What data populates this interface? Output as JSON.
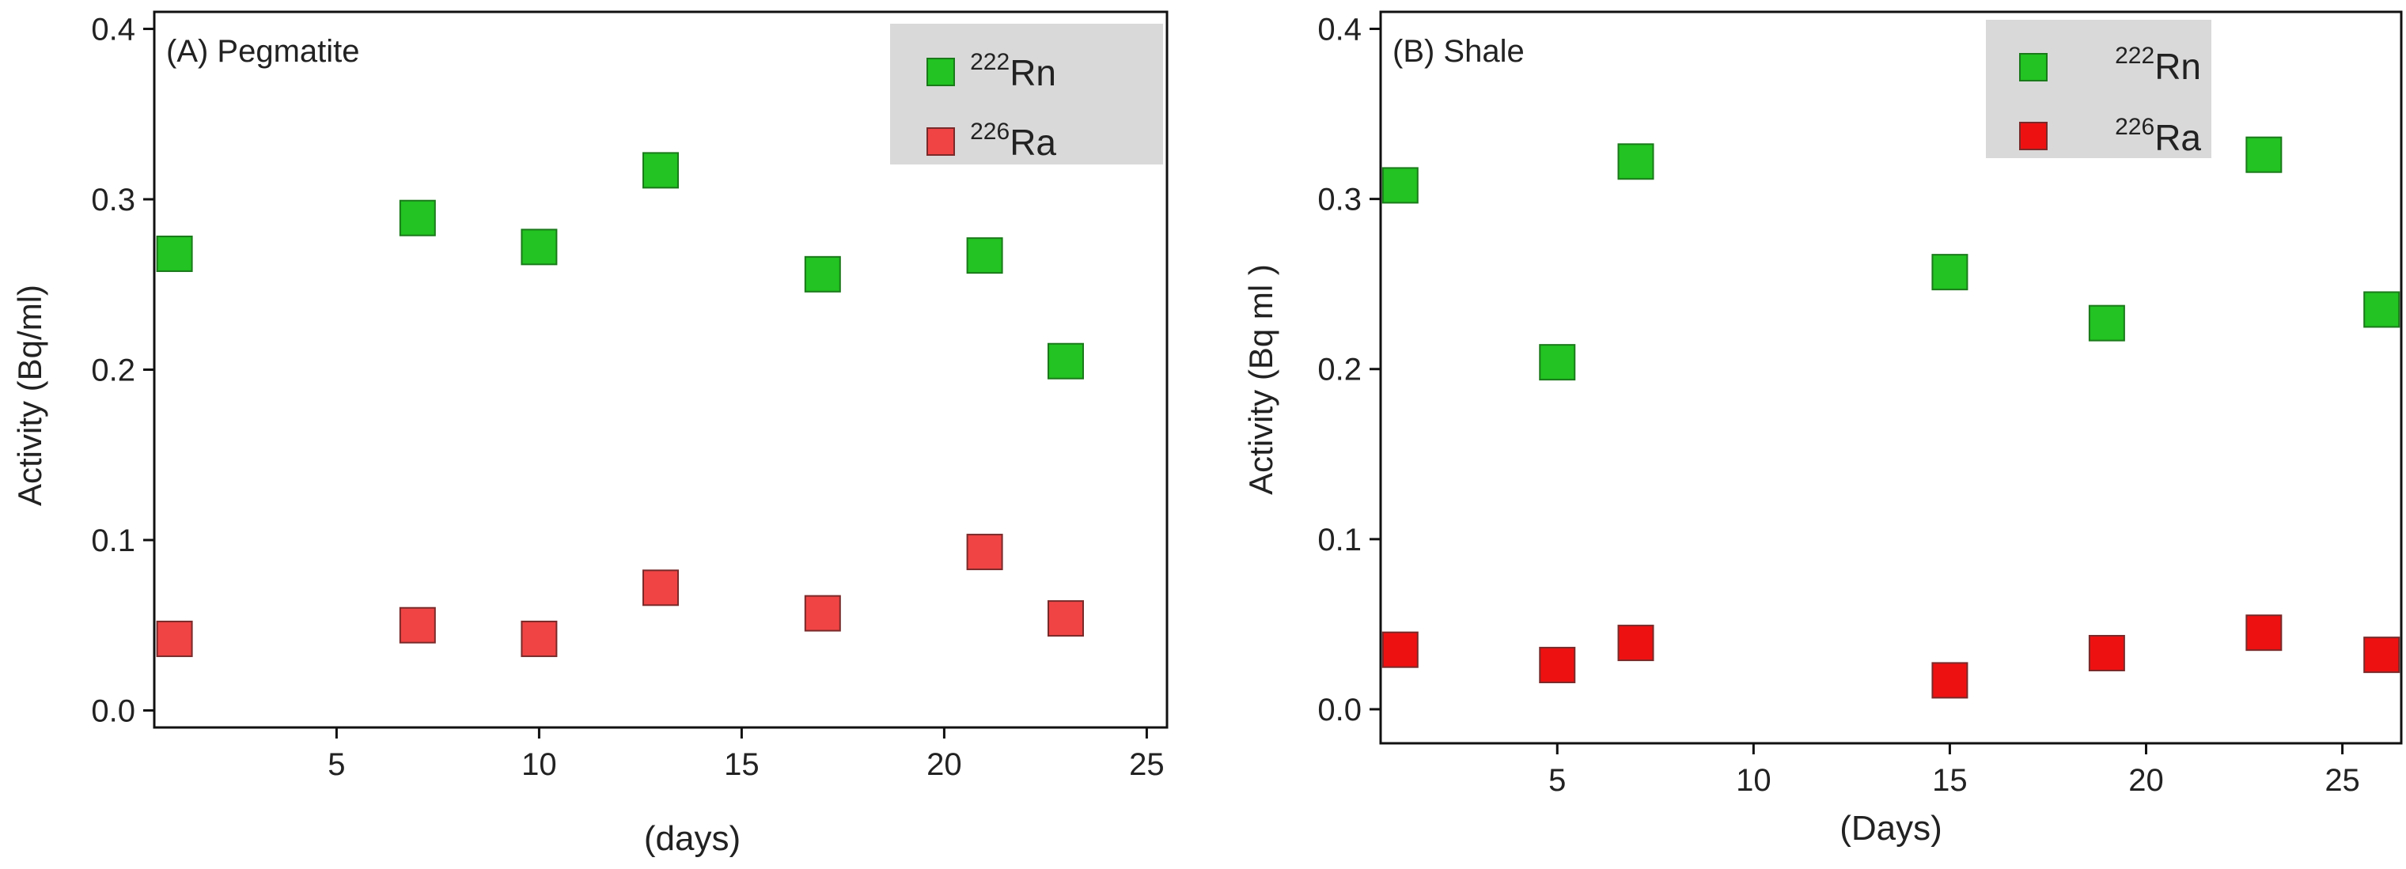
{
  "colors": {
    "rn": "#22c322",
    "rn_stroke": "#1a7a1a",
    "ra_a": "#f04444",
    "ra_b": "#ee1111",
    "ra_stroke": "#7a2a2a",
    "legend_bg": "#d9d9d9",
    "axis": "#111111"
  },
  "chart_data": [
    {
      "type": "scatter",
      "title": "(A) Pegmatite",
      "xlabel": "(days)",
      "ylabel": "Activity (Bq/ml)",
      "xlim": [
        0.5,
        25.5
      ],
      "ylim": [
        -0.01,
        0.41
      ],
      "xticks": [
        5,
        10,
        15,
        20,
        25
      ],
      "yticks": [
        0.0,
        0.1,
        0.2,
        0.3,
        0.4
      ],
      "ytick_labels": [
        "0.0",
        "0.1",
        "0.2",
        "0.3",
        "0.4"
      ],
      "legend": {
        "position": "top-right",
        "entries": [
          {
            "sup": "222",
            "label": "Rn"
          },
          {
            "sup": "226",
            "label": "Ra"
          }
        ]
      },
      "series": [
        {
          "name": "222Rn",
          "x": [
            1,
            7,
            10,
            13,
            17,
            21,
            23
          ],
          "y": [
            0.268,
            0.289,
            0.272,
            0.317,
            0.256,
            0.267,
            0.205
          ]
        },
        {
          "name": "226Ra",
          "x": [
            1,
            7,
            10,
            13,
            17,
            21,
            23
          ],
          "y": [
            0.042,
            0.05,
            0.042,
            0.072,
            0.057,
            0.093,
            0.054
          ]
        }
      ]
    },
    {
      "type": "scatter",
      "title": "(B) Shale",
      "xlabel": "(Days)",
      "ylabel": "Activity (Bq ml   )",
      "xlim": [
        0.5,
        26.5
      ],
      "ylim": [
        -0.02,
        0.41
      ],
      "xticks": [
        5,
        10,
        15,
        20,
        25
      ],
      "yticks": [
        0.0,
        0.1,
        0.2,
        0.3,
        0.4
      ],
      "ytick_labels": [
        "0.0",
        "0.1",
        "0.2",
        "0.3",
        "0.4"
      ],
      "legend": {
        "position": "top-right",
        "entries": [
          {
            "sup": "222",
            "label": "Rn"
          },
          {
            "sup": "226",
            "label": "Ra"
          }
        ]
      },
      "series": [
        {
          "name": "222Rn",
          "x": [
            1,
            5,
            7,
            15,
            19,
            23,
            26
          ],
          "y": [
            0.308,
            0.204,
            0.322,
            0.257,
            0.227,
            0.326,
            0.235
          ]
        },
        {
          "name": "226Ra",
          "x": [
            1,
            5,
            7,
            15,
            19,
            23,
            26
          ],
          "y": [
            0.035,
            0.026,
            0.039,
            0.017,
            0.033,
            0.045,
            0.032
          ]
        }
      ]
    }
  ]
}
